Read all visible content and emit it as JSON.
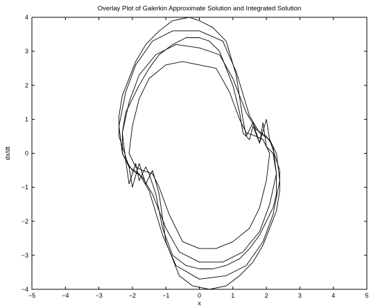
{
  "chart_data": {
    "type": "line",
    "title": "Overlay Plot of Galerkin Approximate Solution and Integrated Solution",
    "xlabel": "x",
    "ylabel": "dx/dt",
    "xlim": [
      -5,
      5
    ],
    "ylim": [
      -4,
      4
    ],
    "xticks": [
      -5,
      -4,
      -3,
      -2,
      -1,
      0,
      1,
      2,
      3,
      4,
      5
    ],
    "yticks": [
      -4,
      -3,
      -2,
      -1,
      0,
      1,
      2,
      3,
      4
    ],
    "xtick_labels": [
      "−5",
      "−4",
      "−3",
      "−2",
      "−1",
      "0",
      "1",
      "2",
      "3",
      "4",
      "5"
    ],
    "ytick_labels": [
      "−4",
      "−3",
      "−2",
      "−1",
      "0",
      "1",
      "2",
      "3",
      "4"
    ],
    "grid": false,
    "line_color": "#000000",
    "series": [
      {
        "x": [
          0.0,
          0.3,
          0.6,
          1.0,
          1.2,
          1.3,
          1.5,
          1.6,
          1.8,
          1.9,
          2.0,
          2.2,
          2.3,
          2.3,
          2.2,
          2.0,
          1.8,
          1.5,
          1.2,
          0.8,
          0.4,
          0.0,
          -0.4,
          -0.8,
          -1.1,
          -1.3,
          -1.5,
          -1.6,
          -1.8,
          -1.9,
          -2.1,
          -2.2,
          -2.3,
          -2.3,
          -2.2,
          -2.0,
          -1.8,
          -1.5,
          -1.2,
          -0.8,
          -0.4,
          0.0
        ],
        "y": [
          3.4,
          3.3,
          3.0,
          2.0,
          1.2,
          0.6,
          0.4,
          0.8,
          0.3,
          0.9,
          0.2,
          0.0,
          -0.6,
          -1.2,
          -1.6,
          -2.0,
          -2.4,
          -2.8,
          -3.1,
          -3.3,
          -3.4,
          -3.4,
          -3.3,
          -3.0,
          -2.2,
          -1.2,
          -0.6,
          -0.4,
          -0.8,
          -0.3,
          -0.9,
          -0.2,
          0.0,
          0.6,
          1.2,
          1.6,
          2.0,
          2.5,
          2.9,
          3.2,
          3.4,
          3.4
        ]
      },
      {
        "x": [
          0.0,
          0.4,
          0.8,
          1.1,
          1.3,
          1.4,
          1.6,
          1.8,
          2.0,
          2.1,
          2.2,
          2.4,
          2.4,
          2.3,
          2.1,
          1.9,
          1.6,
          1.2,
          0.8,
          0.3,
          -0.2,
          -0.6,
          -1.0,
          -1.2,
          -1.4,
          -1.6,
          -1.8,
          -2.0,
          -2.1,
          -2.2,
          -2.4,
          -2.4,
          -2.3,
          -2.1,
          -1.9,
          -1.6,
          -1.2,
          -0.8,
          -0.3,
          0.0
        ],
        "y": [
          3.9,
          3.7,
          3.3,
          2.3,
          1.0,
          0.5,
          0.9,
          0.3,
          1.0,
          0.4,
          0.1,
          -0.5,
          -1.1,
          -1.7,
          -2.2,
          -2.7,
          -3.2,
          -3.6,
          -3.9,
          -4.0,
          -3.9,
          -3.6,
          -2.6,
          -1.2,
          -0.5,
          -0.9,
          -0.3,
          -1.0,
          -0.4,
          -0.1,
          0.5,
          1.1,
          1.7,
          2.2,
          2.7,
          3.2,
          3.6,
          3.9,
          4.0,
          3.9
        ]
      },
      {
        "x": [
          0.0,
          0.5,
          0.9,
          1.2,
          1.4,
          1.7,
          1.9,
          2.1,
          2.0,
          1.8,
          1.5,
          1.0,
          0.5,
          0.0,
          -0.5,
          -0.9,
          -1.2,
          -1.4,
          -1.7,
          -1.9,
          -2.1,
          -2.0,
          -1.8,
          -1.5,
          -1.0,
          -0.5,
          0.0
        ],
        "y": [
          2.6,
          2.5,
          1.8,
          1.0,
          0.6,
          0.5,
          0.4,
          0.0,
          -0.8,
          -1.6,
          -2.2,
          -2.6,
          -2.8,
          -2.8,
          -2.6,
          -1.8,
          -1.0,
          -0.6,
          -0.5,
          -0.4,
          0.0,
          0.8,
          1.6,
          2.2,
          2.6,
          2.7,
          2.6
        ]
      },
      {
        "x": [
          0.0,
          0.6,
          1.0,
          1.4,
          1.7,
          2.0,
          2.2,
          2.3,
          2.1,
          1.8,
          1.3,
          0.7,
          0.0,
          -0.6,
          -1.0,
          -1.4,
          -1.7,
          -2.0,
          -2.2,
          -2.3,
          -2.1,
          -1.8,
          -1.3,
          -0.7,
          0.0
        ],
        "y": [
          3.1,
          2.9,
          2.2,
          1.2,
          0.7,
          0.5,
          0.2,
          -0.6,
          -1.5,
          -2.3,
          -2.9,
          -3.2,
          -3.2,
          -2.9,
          -2.2,
          -1.2,
          -0.7,
          -0.5,
          -0.2,
          0.6,
          1.5,
          2.3,
          2.9,
          3.2,
          3.1
        ]
      },
      {
        "x": [
          0.0,
          0.7,
          1.1,
          1.5,
          1.8,
          2.1,
          2.3,
          2.4,
          2.2,
          1.9,
          1.4,
          0.8,
          0.0,
          -0.7,
          -1.1,
          -1.5,
          -1.8,
          -2.1,
          -2.3,
          -2.4,
          -2.2,
          -1.9,
          -1.4,
          -0.8,
          0.0
        ],
        "y": [
          3.6,
          3.3,
          2.4,
          1.1,
          0.6,
          0.4,
          0.0,
          -0.8,
          -1.8,
          -2.6,
          -3.3,
          -3.6,
          -3.7,
          -3.3,
          -2.4,
          -1.1,
          -0.6,
          -0.4,
          0.0,
          0.8,
          1.8,
          2.6,
          3.3,
          3.6,
          3.6
        ]
      }
    ]
  }
}
